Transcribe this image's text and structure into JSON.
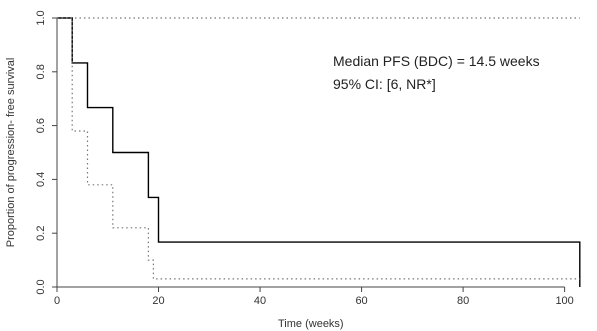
{
  "chart_data": {
    "type": "line",
    "title": "",
    "xlabel": "Time (weeks)",
    "ylabel": "Proportion of progression- free survival",
    "xlim": [
      0,
      105
    ],
    "ylim": [
      0,
      1.0
    ],
    "xticks": [
      0,
      20,
      40,
      60,
      80,
      100
    ],
    "yticks": [
      0.0,
      0.2,
      0.4,
      0.6,
      0.8,
      1.0
    ],
    "xtick_labels": [
      "0",
      "20",
      "40",
      "60",
      "80",
      "100"
    ],
    "ytick_labels": [
      "0.0",
      "0.2",
      "0.4",
      "0.6",
      "0.8",
      "1.0"
    ],
    "grid": false,
    "annotations": [
      "Median PFS (BDC) = 14.5 weeks",
      "95% CI: [6, NR*]"
    ],
    "series": [
      {
        "style": "solid",
        "color": "#000000",
        "x": [
          0,
          3,
          3,
          6,
          6,
          11,
          11,
          18,
          18,
          20,
          20,
          103,
          103
        ],
        "y": [
          1.0,
          1.0,
          0.833,
          0.833,
          0.667,
          0.667,
          0.5,
          0.5,
          0.333,
          0.333,
          0.167,
          0.167,
          0.0
        ]
      },
      {
        "style": "dotted",
        "color": "#777777",
        "x": [
          0,
          3,
          3,
          6,
          6,
          11,
          11,
          18,
          18,
          19,
          19,
          20,
          20,
          103
        ],
        "y": [
          1.0,
          1.0,
          0.58,
          0.58,
          0.38,
          0.38,
          0.22,
          0.22,
          0.1,
          0.1,
          0.03,
          0.03,
          0.03,
          0.03
        ]
      },
      {
        "style": "dotted",
        "color": "#777777",
        "x": [
          0,
          103
        ],
        "y": [
          1.0,
          1.0
        ]
      }
    ]
  }
}
